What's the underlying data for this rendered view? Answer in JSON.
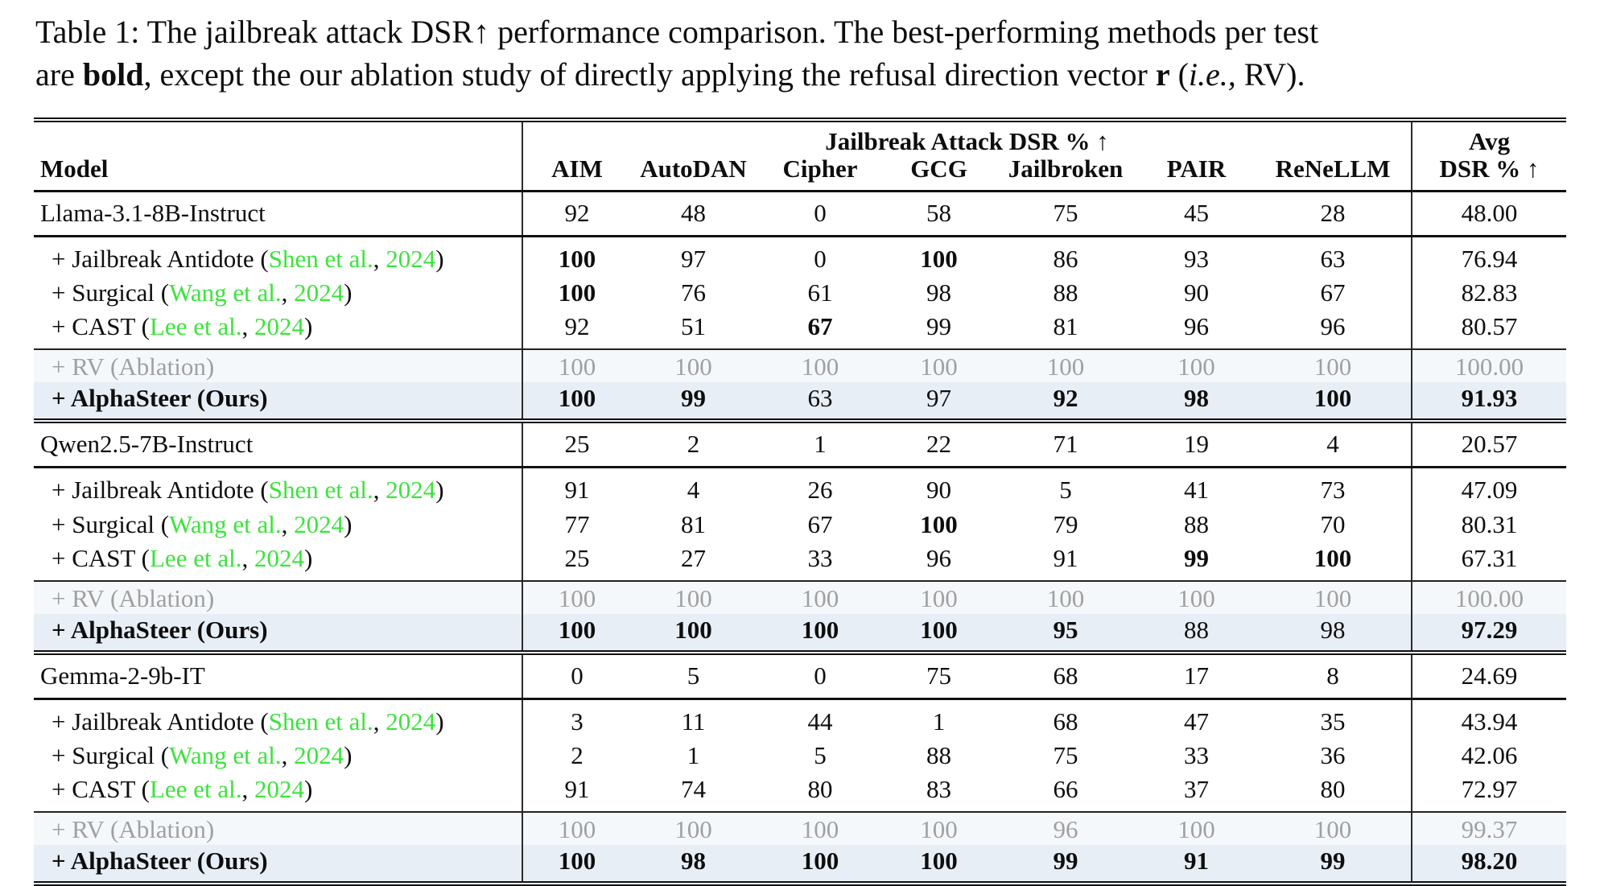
{
  "caption": {
    "line1": "Table 1: The jailbreak attack DSR↑ performance comparison. The best-performing methods per test",
    "line2_segments": [
      {
        "t": "are "
      },
      {
        "t": "bold"
      },
      {
        "t": ", except the our ablation study of directly applying the refusal direction vector "
      },
      {
        "t": "r"
      },
      {
        "t": " ("
      },
      {
        "t": "i.e.,"
      },
      {
        "t": " RV)."
      }
    ]
  },
  "colors": {
    "citation_green": "#3ce33c",
    "ablation_gray": "#a0a0a0",
    "rv_row_background": "#f5f8fb",
    "ours_row_background": "#e8eef6"
  },
  "table": {
    "model_header": "Model",
    "group_header": "Jailbreak Attack DSR % ↑",
    "attack_headers": [
      "AIM",
      "AutoDAN",
      "Cipher",
      "GCG",
      "Jailbroken",
      "PAIR",
      "ReNeLLM"
    ],
    "avg_header": [
      "Avg",
      "DSR % ↑"
    ],
    "sections": [
      {
        "base": {
          "label": "Llama-3.1-8B-Instruct",
          "values": [
            "92",
            "48",
            "0",
            "58",
            "75",
            "45",
            "28"
          ],
          "avg": "48.00"
        },
        "methods": [
          {
            "prefix": "+ Jailbreak Antidote (",
            "cite": "Shen et al.",
            "sep": ", ",
            "year": "2024",
            "suffix": ")",
            "values": [
              "100",
              "97",
              "0",
              "100",
              "86",
              "93",
              "63"
            ],
            "bold": [
              1,
              0,
              0,
              1,
              0,
              0,
              0
            ],
            "avg": "76.94"
          },
          {
            "prefix": "+ Surgical (",
            "cite": "Wang et al.",
            "sep": ", ",
            "year": "2024",
            "suffix": ")",
            "values": [
              "100",
              "76",
              "61",
              "98",
              "88",
              "90",
              "67"
            ],
            "bold": [
              1,
              0,
              0,
              0,
              0,
              0,
              0
            ],
            "avg": "82.83"
          },
          {
            "prefix": "+ CAST (",
            "cite": "Lee et al.",
            "sep": ", ",
            "year": "2024",
            "suffix": ")",
            "values": [
              "92",
              "51",
              "67",
              "99",
              "81",
              "96",
              "96"
            ],
            "bold": [
              0,
              0,
              1,
              0,
              0,
              0,
              0
            ],
            "avg": "80.57"
          }
        ],
        "rv": {
          "label": "+ RV (Ablation)",
          "values": [
            "100",
            "100",
            "100",
            "100",
            "100",
            "100",
            "100"
          ],
          "avg": "100.00"
        },
        "ours": {
          "label": "+ AlphaSteer (Ours)",
          "values": [
            "100",
            "99",
            "63",
            "97",
            "92",
            "98",
            "100"
          ],
          "bold": [
            1,
            1,
            0,
            0,
            1,
            1,
            1
          ],
          "avg": "91.93",
          "avg_bold": true
        }
      },
      {
        "base": {
          "label": "Qwen2.5-7B-Instruct",
          "values": [
            "25",
            "2",
            "1",
            "22",
            "71",
            "19",
            "4"
          ],
          "avg": "20.57"
        },
        "methods": [
          {
            "prefix": "+ Jailbreak Antidote (",
            "cite": "Shen et al.",
            "sep": ", ",
            "year": "2024",
            "suffix": ")",
            "values": [
              "91",
              "4",
              "26",
              "90",
              "5",
              "41",
              "73"
            ],
            "bold": [
              0,
              0,
              0,
              0,
              0,
              0,
              0
            ],
            "avg": "47.09"
          },
          {
            "prefix": "+ Surgical (",
            "cite": "Wang et al.",
            "sep": ", ",
            "year": "2024",
            "suffix": ")",
            "values": [
              "77",
              "81",
              "67",
              "100",
              "79",
              "88",
              "70"
            ],
            "bold": [
              0,
              0,
              0,
              1,
              0,
              0,
              0
            ],
            "avg": "80.31"
          },
          {
            "prefix": "+ CAST (",
            "cite": "Lee et al.",
            "sep": ", ",
            "year": "2024",
            "suffix": ")",
            "values": [
              "25",
              "27",
              "33",
              "96",
              "91",
              "99",
              "100"
            ],
            "bold": [
              0,
              0,
              0,
              0,
              0,
              1,
              1
            ],
            "avg": "67.31"
          }
        ],
        "rv": {
          "label": "+ RV (Ablation)",
          "values": [
            "100",
            "100",
            "100",
            "100",
            "100",
            "100",
            "100"
          ],
          "avg": "100.00"
        },
        "ours": {
          "label": "+ AlphaSteer (Ours)",
          "values": [
            "100",
            "100",
            "100",
            "100",
            "95",
            "88",
            "98"
          ],
          "bold": [
            1,
            1,
            1,
            1,
            1,
            0,
            0
          ],
          "avg": "97.29",
          "avg_bold": true
        }
      },
      {
        "base": {
          "label": "Gemma-2-9b-IT",
          "values": [
            "0",
            "5",
            "0",
            "75",
            "68",
            "17",
            "8"
          ],
          "avg": "24.69"
        },
        "methods": [
          {
            "prefix": "+ Jailbreak Antidote (",
            "cite": "Shen et al.",
            "sep": ", ",
            "year": "2024",
            "suffix": ")",
            "values": [
              "3",
              "11",
              "44",
              "1",
              "68",
              "47",
              "35"
            ],
            "bold": [
              0,
              0,
              0,
              0,
              0,
              0,
              0
            ],
            "avg": "43.94"
          },
          {
            "prefix": "+ Surgical (",
            "cite": "Wang et al.",
            "sep": ", ",
            "year": "2024",
            "suffix": ")",
            "values": [
              "2",
              "1",
              "5",
              "88",
              "75",
              "33",
              "36"
            ],
            "bold": [
              0,
              0,
              0,
              0,
              0,
              0,
              0
            ],
            "avg": "42.06"
          },
          {
            "prefix": "+ CAST (",
            "cite": "Lee et al.",
            "sep": ", ",
            "year": "2024",
            "suffix": ")",
            "values": [
              "91",
              "74",
              "80",
              "83",
              "66",
              "37",
              "80"
            ],
            "bold": [
              0,
              0,
              0,
              0,
              0,
              0,
              0
            ],
            "avg": "72.97"
          }
        ],
        "rv": {
          "label": "+ RV (Ablation)",
          "values": [
            "100",
            "100",
            "100",
            "100",
            "96",
            "100",
            "100"
          ],
          "avg": "99.37"
        },
        "ours": {
          "label": "+ AlphaSteer (Ours)",
          "values": [
            "100",
            "98",
            "100",
            "100",
            "99",
            "91",
            "99"
          ],
          "bold": [
            1,
            1,
            1,
            1,
            1,
            1,
            1
          ],
          "avg": "98.20",
          "avg_bold": true
        }
      }
    ]
  }
}
